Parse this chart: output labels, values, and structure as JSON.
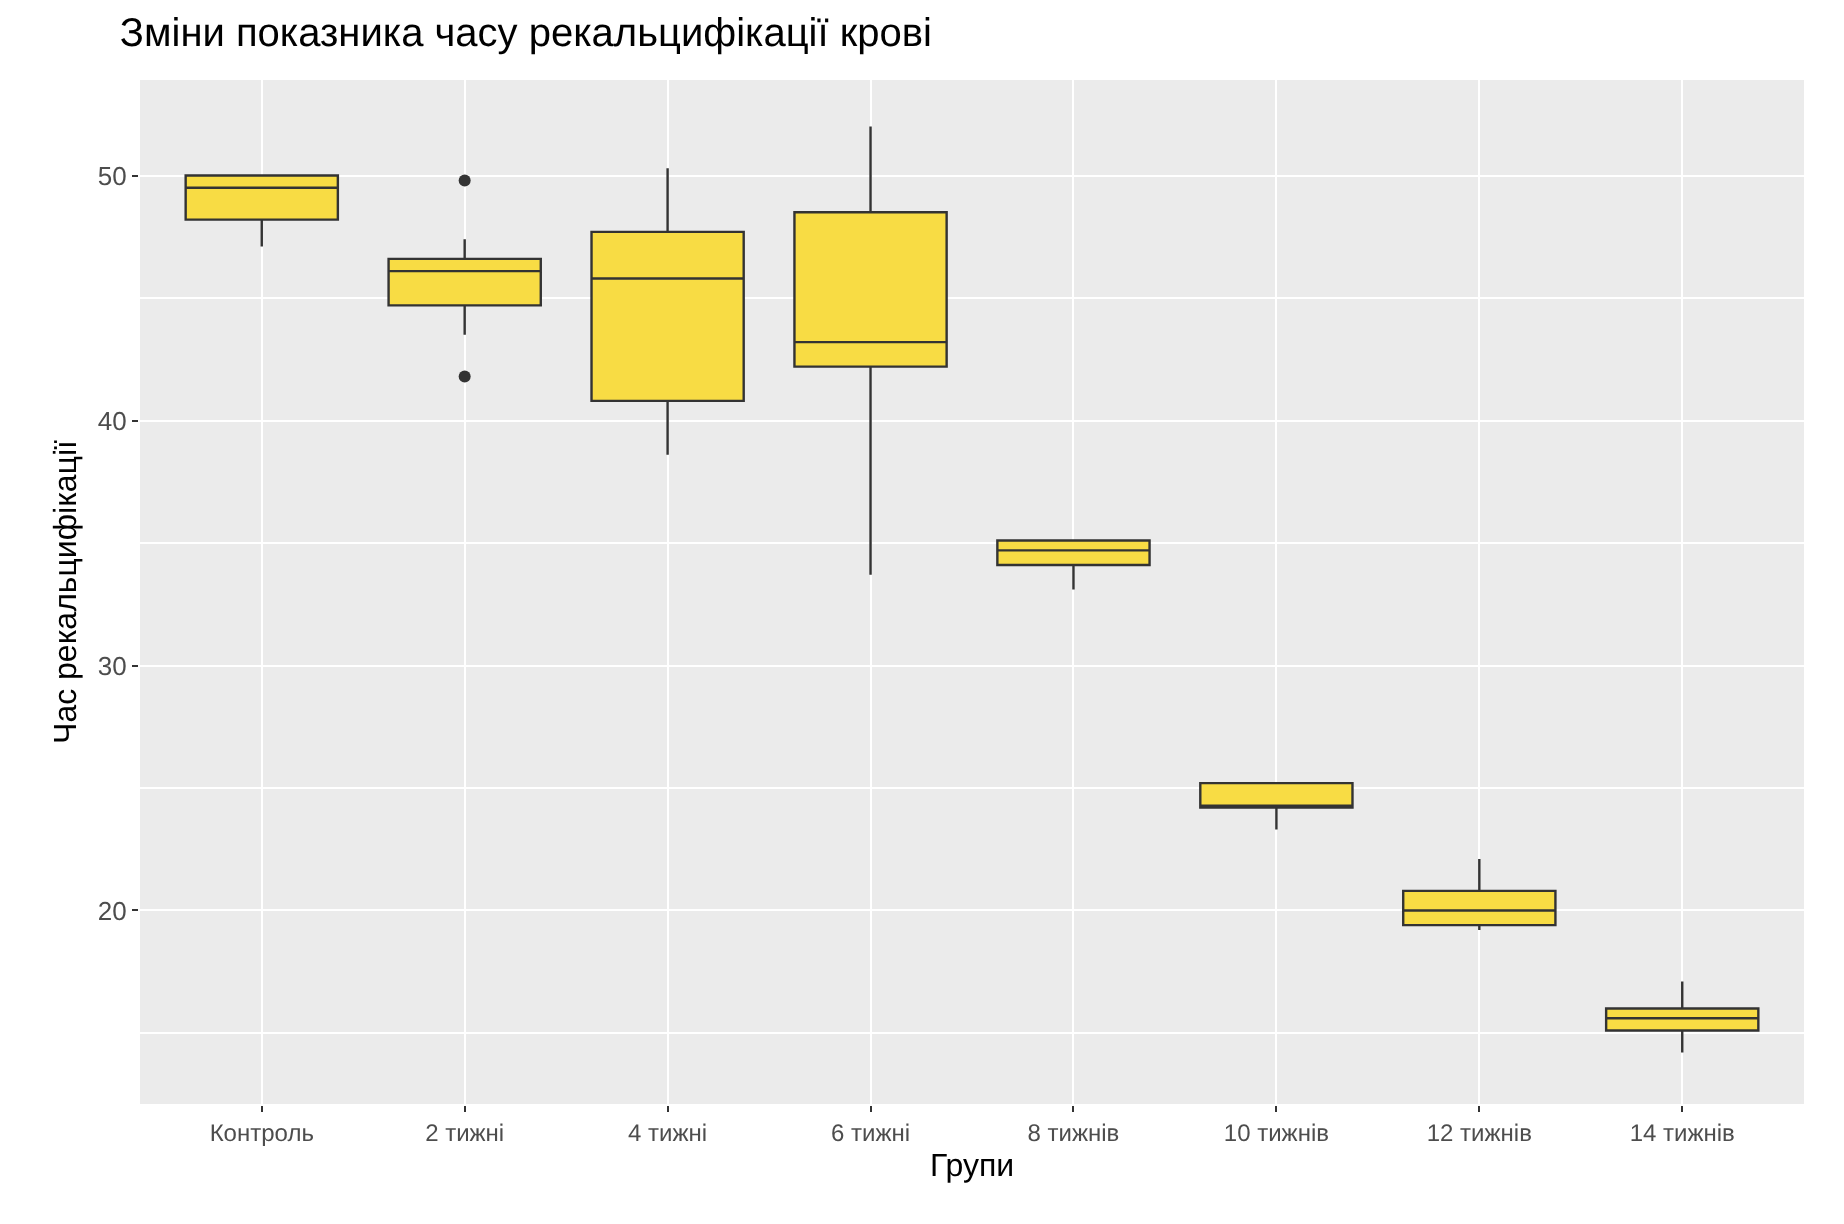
{
  "chart_data": {
    "type": "box",
    "title": "Зміни показника часу рекальцифікації крові",
    "xlabel": "Групи",
    "ylabel": "Час рекальцифікації",
    "categories": [
      "Контроль",
      "2 тижні",
      "4 тижні",
      "6 тижні",
      "8 тижнів",
      "10 тижнів",
      "12 тижнів",
      "14 тижнів"
    ],
    "boxes": [
      {
        "low": 47.1,
        "q1": 48.2,
        "median": 49.5,
        "q3": 50.0,
        "high": 50.0
      },
      {
        "low": 43.5,
        "q1": 44.7,
        "median": 46.1,
        "q3": 46.6,
        "high": 47.4,
        "outliers": [
          49.8,
          41.8
        ]
      },
      {
        "low": 38.6,
        "q1": 40.8,
        "median": 45.8,
        "q3": 47.7,
        "high": 50.3
      },
      {
        "low": 33.7,
        "q1": 42.2,
        "median": 43.2,
        "q3": 48.5,
        "high": 52.0
      },
      {
        "low": 33.1,
        "q1": 34.1,
        "median": 34.7,
        "q3": 35.1,
        "high": 35.1
      },
      {
        "low": 23.3,
        "q1": 24.2,
        "median": 24.2,
        "q3": 25.2,
        "high": 25.2
      },
      {
        "low": 19.2,
        "q1": 19.4,
        "median": 20.0,
        "q3": 20.8,
        "high": 22.1
      },
      {
        "low": 14.2,
        "q1": 15.1,
        "median": 15.6,
        "q3": 16.0,
        "high": 17.1
      }
    ],
    "color": "#f8dc44",
    "ylim": [
      12.1,
      53.9
    ],
    "yticks": [
      20,
      30,
      40,
      50
    ],
    "grid": true
  }
}
